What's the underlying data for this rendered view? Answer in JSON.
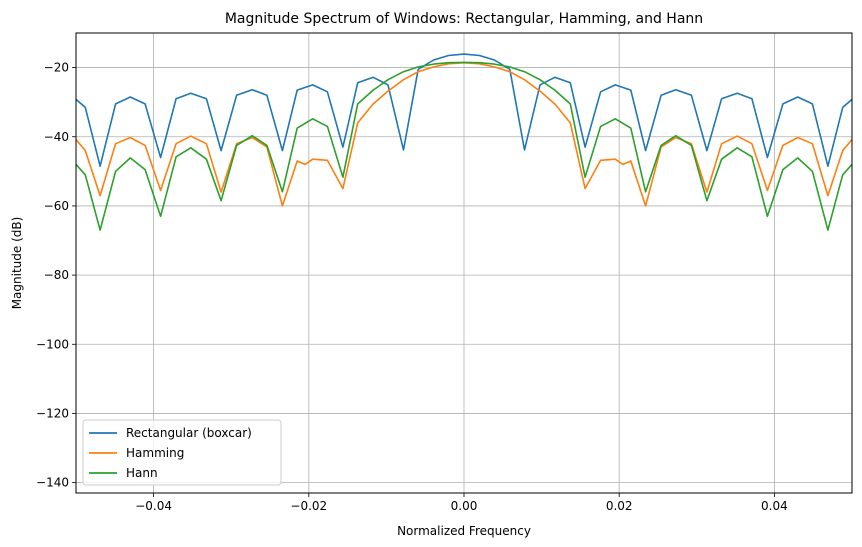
{
  "chart_data": {
    "type": "line",
    "title": "Magnitude Spectrum of Windows: Rectangular, Hamming, and Hann",
    "xlabel": "Normalized Frequency",
    "ylabel": "Magnitude (dB)",
    "xlim": [
      -0.05,
      0.05
    ],
    "ylim": [
      -143,
      -10
    ],
    "xticks": [
      -0.04,
      -0.02,
      0.0,
      0.02,
      0.04
    ],
    "xtick_labels": [
      "−0.04",
      "−0.02",
      "0.00",
      "0.02",
      "0.04"
    ],
    "yticks": [
      -20,
      -40,
      -60,
      -80,
      -100,
      -120,
      -140
    ],
    "ytick_labels": [
      "−20",
      "−40",
      "−60",
      "−80",
      "−100",
      "−120",
      "−140"
    ],
    "grid": true,
    "legend_position": "lower-left",
    "series": [
      {
        "name": "Rectangular (boxcar)",
        "color": "#1f77b4",
        "x": [
          -0.05,
          -0.0488,
          -0.0469,
          -0.0449,
          -0.043,
          -0.0411,
          -0.0391,
          -0.0371,
          -0.0352,
          -0.0332,
          -0.0313,
          -0.0293,
          -0.0273,
          -0.0254,
          -0.0234,
          -0.0215,
          -0.0195,
          -0.0176,
          -0.0156,
          -0.0137,
          -0.0117,
          -0.0098,
          -0.0078,
          -0.0059,
          -0.0039,
          -0.002,
          0.0,
          0.002,
          0.0039,
          0.0059,
          0.0078,
          0.0098,
          0.0117,
          0.0137,
          0.0156,
          0.0176,
          0.0195,
          0.0215,
          0.0234,
          0.0254,
          0.0273,
          0.0293,
          0.0313,
          0.0332,
          0.0352,
          0.0371,
          0.0391,
          0.0411,
          0.043,
          0.0449,
          0.0469,
          0.0488,
          0.05
        ],
        "y": [
          -29.2,
          -31.5,
          -48.5,
          -30.5,
          -28.5,
          -30.5,
          -46,
          -29,
          -27.4,
          -29,
          -44,
          -28,
          -26.4,
          -28,
          -44,
          -26.5,
          -25,
          -27,
          -43,
          -24.4,
          -22.8,
          -25,
          -43.8,
          -20.5,
          -17.8,
          -16.5,
          -16.1,
          -16.5,
          -17.8,
          -20.5,
          -43.8,
          -25,
          -22.8,
          -24.4,
          -43,
          -27,
          -25,
          -26.5,
          -44,
          -28,
          -26.4,
          -28,
          -44,
          -29,
          -27.4,
          -29,
          -46,
          -30.5,
          -28.5,
          -30.5,
          -48.5,
          -31.5,
          -29.2
        ]
      },
      {
        "name": "Hamming",
        "color": "#ff7f0e",
        "x": [
          -0.05,
          -0.0488,
          -0.0469,
          -0.0449,
          -0.043,
          -0.0411,
          -0.0391,
          -0.0371,
          -0.0352,
          -0.0332,
          -0.0313,
          -0.0293,
          -0.0273,
          -0.0254,
          -0.0234,
          -0.0215,
          -0.0205,
          -0.0195,
          -0.0176,
          -0.0156,
          -0.0137,
          -0.0117,
          -0.0098,
          -0.0078,
          -0.0059,
          -0.0039,
          -0.002,
          0.0,
          0.002,
          0.0039,
          0.0059,
          0.0078,
          0.0098,
          0.0117,
          0.0137,
          0.0156,
          0.0176,
          0.0195,
          0.0205,
          0.0215,
          0.0234,
          0.0254,
          0.0273,
          0.0293,
          0.0313,
          0.0332,
          0.0352,
          0.0371,
          0.0391,
          0.0411,
          0.043,
          0.0449,
          0.0469,
          0.0488,
          0.05
        ],
        "y": [
          -40.8,
          -44,
          -57,
          -42,
          -40.2,
          -42.5,
          -55.5,
          -42,
          -39.8,
          -42,
          -56,
          -42,
          -40.2,
          -43,
          -60,
          -47,
          -48,
          -46.5,
          -46.8,
          -55,
          -36,
          -30.5,
          -26.8,
          -23.5,
          -21.2,
          -19.8,
          -18.9,
          -18.6,
          -18.9,
          -19.8,
          -21.2,
          -23.5,
          -26.8,
          -30.5,
          -36,
          -55,
          -46.8,
          -46.5,
          -48,
          -47,
          -60,
          -43,
          -40.2,
          -42,
          -56,
          -42,
          -39.8,
          -42,
          -55.5,
          -42.5,
          -40.2,
          -42,
          -57,
          -44,
          -40.8
        ]
      },
      {
        "name": "Hann",
        "color": "#2ca02c",
        "x": [
          -0.05,
          -0.0488,
          -0.0469,
          -0.0449,
          -0.043,
          -0.0411,
          -0.0391,
          -0.0371,
          -0.0352,
          -0.0332,
          -0.0313,
          -0.0293,
          -0.0273,
          -0.0254,
          -0.0234,
          -0.0215,
          -0.0195,
          -0.0176,
          -0.0156,
          -0.0137,
          -0.0117,
          -0.0098,
          -0.0078,
          -0.0059,
          -0.0039,
          -0.002,
          0.0,
          0.002,
          0.0039,
          0.0059,
          0.0078,
          0.0098,
          0.0117,
          0.0137,
          0.0156,
          0.0176,
          0.0195,
          0.0215,
          0.0234,
          0.0254,
          0.0273,
          0.0293,
          0.0313,
          0.0332,
          0.0352,
          0.0371,
          0.0391,
          0.0411,
          0.043,
          0.0449,
          0.0469,
          0.0488,
          0.05
        ],
        "y": [
          -48,
          -51,
          -67,
          -50,
          -46.1,
          -49.5,
          -63,
          -45.8,
          -43.2,
          -46.5,
          -58.5,
          -42.5,
          -39.7,
          -42.5,
          -55.9,
          -37.5,
          -34.8,
          -37,
          -51.7,
          -30.5,
          -26.5,
          -23.5,
          -21.2,
          -19.8,
          -19,
          -18.6,
          -18.5,
          -18.6,
          -19,
          -19.8,
          -21.2,
          -23.5,
          -26.5,
          -30.5,
          -51.7,
          -37,
          -34.8,
          -37.5,
          -55.9,
          -42.5,
          -39.7,
          -42.5,
          -58.5,
          -46.5,
          -43.2,
          -45.8,
          -63,
          -49.5,
          -46.1,
          -50,
          -67,
          -51,
          -48
        ]
      }
    ]
  }
}
